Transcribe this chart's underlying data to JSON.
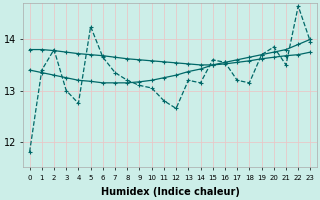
{
  "xlabel": "Humidex (Indice chaleur)",
  "background_color": "#cceee8",
  "grid_color": "#e8c8c8",
  "line_color": "#006868",
  "x": [
    0,
    1,
    2,
    3,
    4,
    5,
    6,
    7,
    8,
    9,
    10,
    11,
    12,
    13,
    14,
    15,
    16,
    17,
    18,
    19,
    20,
    21,
    22,
    23
  ],
  "y_zigzag": [
    11.8,
    13.4,
    13.8,
    13.0,
    12.75,
    14.25,
    13.65,
    13.35,
    13.2,
    13.1,
    13.05,
    12.8,
    12.65,
    13.2,
    13.15,
    13.6,
    13.55,
    13.2,
    13.15,
    13.7,
    13.85,
    13.5,
    14.65,
    13.95
  ],
  "y_flat": [
    13.8,
    13.8,
    13.78,
    13.75,
    13.72,
    13.7,
    13.68,
    13.65,
    13.62,
    13.6,
    13.58,
    13.56,
    13.54,
    13.52,
    13.5,
    13.5,
    13.52,
    13.55,
    13.58,
    13.62,
    13.65,
    13.68,
    13.7,
    13.75
  ],
  "y_rising": [
    13.4,
    13.35,
    13.3,
    13.25,
    13.2,
    13.18,
    13.15,
    13.15,
    13.15,
    13.17,
    13.2,
    13.25,
    13.3,
    13.37,
    13.42,
    13.5,
    13.55,
    13.6,
    13.65,
    13.7,
    13.75,
    13.8,
    13.9,
    14.0
  ],
  "ylim": [
    11.5,
    14.7
  ],
  "yticks": [
    12,
    13,
    14
  ],
  "xlim": [
    -0.5,
    23.5
  ]
}
